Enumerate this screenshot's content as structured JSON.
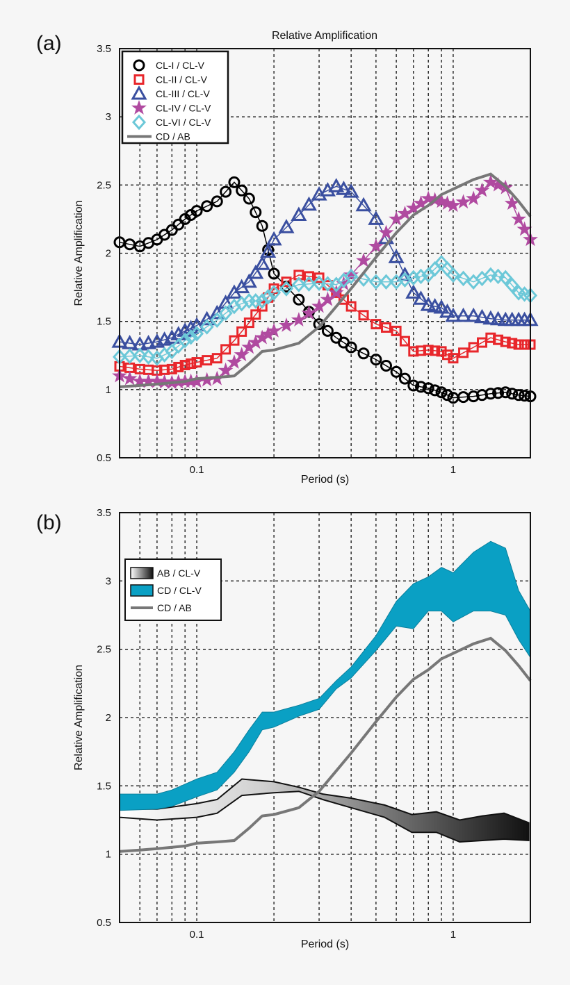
{
  "chart_data": [
    {
      "panel_label": "(a)",
      "type": "line",
      "title": "Relative Amplification",
      "xlabel": "Period (s)",
      "ylabel": "Relative Amplification",
      "xscale": "log",
      "xlim": [
        0.05,
        2.0
      ],
      "ylim": [
        0.5,
        3.5
      ],
      "xticks": [
        {
          "v": 0.1,
          "label": "0.1"
        },
        {
          "v": 1,
          "label": "1"
        }
      ],
      "yticks": [
        {
          "v": 0.5,
          "label": "0.5"
        },
        {
          "v": 1,
          "label": "1"
        },
        {
          "v": 1.5,
          "label": "1.5"
        },
        {
          "v": 2,
          "label": "2"
        },
        {
          "v": 2.5,
          "label": "2.5"
        },
        {
          "v": 3,
          "label": "3"
        },
        {
          "v": 3.5,
          "label": "3.5"
        }
      ],
      "grid": true,
      "legend_position": "top-left",
      "x": [
        0.05,
        0.06,
        0.07,
        0.08,
        0.09,
        0.1,
        0.12,
        0.14,
        0.16,
        0.18,
        0.2,
        0.25,
        0.3,
        0.35,
        0.4,
        0.5,
        0.6,
        0.7,
        0.8,
        0.9,
        1.0,
        1.2,
        1.4,
        1.6,
        1.8,
        2.0
      ],
      "series": [
        {
          "name": "CL-I / CL-V",
          "marker": "circle",
          "color": "#000000",
          "values": [
            2.08,
            2.05,
            2.1,
            2.17,
            2.25,
            2.31,
            2.38,
            2.52,
            2.4,
            2.2,
            1.85,
            1.66,
            1.48,
            1.38,
            1.31,
            1.22,
            1.13,
            1.03,
            1.01,
            0.98,
            0.94,
            0.95,
            0.97,
            0.98,
            0.96,
            0.95
          ]
        },
        {
          "name": "CL-II / CL-V",
          "marker": "square",
          "color": "#e8262b",
          "values": [
            1.17,
            1.15,
            1.14,
            1.15,
            1.18,
            1.2,
            1.23,
            1.36,
            1.49,
            1.61,
            1.74,
            1.84,
            1.82,
            1.71,
            1.61,
            1.48,
            1.43,
            1.28,
            1.29,
            1.28,
            1.23,
            1.31,
            1.38,
            1.35,
            1.33,
            1.33
          ]
        },
        {
          "name": "CL-III / CL-V",
          "marker": "triangle",
          "color": "#3a4fa0",
          "values": [
            1.35,
            1.33,
            1.35,
            1.38,
            1.43,
            1.47,
            1.56,
            1.71,
            1.79,
            1.92,
            2.1,
            2.28,
            2.43,
            2.49,
            2.45,
            2.25,
            1.97,
            1.71,
            1.62,
            1.6,
            1.54,
            1.54,
            1.52,
            1.51,
            1.51,
            1.51
          ]
        },
        {
          "name": "CL-IV / CL-V",
          "marker": "star",
          "color": "#b04aa0",
          "values": [
            1.1,
            1.06,
            1.06,
            1.05,
            1.06,
            1.06,
            1.08,
            1.2,
            1.31,
            1.38,
            1.43,
            1.51,
            1.61,
            1.71,
            1.84,
            2.05,
            2.25,
            2.33,
            2.4,
            2.38,
            2.35,
            2.4,
            2.52,
            2.48,
            2.25,
            2.1
          ]
        },
        {
          "name": "CL-VI / CL-V",
          "marker": "diamond",
          "color": "#6cc8d8",
          "values": [
            1.24,
            1.25,
            1.23,
            1.28,
            1.36,
            1.41,
            1.51,
            1.61,
            1.65,
            1.65,
            1.71,
            1.77,
            1.78,
            1.77,
            1.83,
            1.79,
            1.79,
            1.82,
            1.84,
            1.93,
            1.84,
            1.79,
            1.84,
            1.82,
            1.71,
            1.69
          ]
        },
        {
          "name": "CD / AB",
          "marker": "none",
          "color": "#777777",
          "values": [
            1.02,
            1.03,
            1.04,
            1.05,
            1.06,
            1.08,
            1.09,
            1.1,
            1.19,
            1.28,
            1.29,
            1.34,
            1.46,
            1.61,
            1.74,
            1.97,
            2.15,
            2.28,
            2.35,
            2.43,
            2.47,
            2.54,
            2.58,
            2.49,
            2.38,
            2.27
          ]
        }
      ]
    },
    {
      "panel_label": "(b)",
      "type": "area",
      "xlabel": "Period (s)",
      "ylabel": "Relative Amplification",
      "xscale": "log",
      "xlim": [
        0.05,
        2.0
      ],
      "ylim": [
        0.5,
        3.5
      ],
      "xticks": [
        {
          "v": 0.1,
          "label": "0.1"
        },
        {
          "v": 1,
          "label": "1"
        }
      ],
      "yticks": [
        {
          "v": 0.5,
          "label": "0.5"
        },
        {
          "v": 1,
          "label": "1"
        },
        {
          "v": 1.5,
          "label": "1.5"
        },
        {
          "v": 2,
          "label": "2"
        },
        {
          "v": 2.5,
          "label": "2.5"
        },
        {
          "v": 3,
          "label": "3"
        },
        {
          "v": 3.5,
          "label": "3.5"
        }
      ],
      "grid": true,
      "legend_position": "upper-left",
      "bands": [
        {
          "name": "AB / CL-V",
          "fill": "gradient white-to-black",
          "x": [
            0.05,
            0.07,
            0.1,
            0.12,
            0.15,
            0.2,
            0.25,
            0.31,
            0.4,
            0.54,
            0.69,
            0.86,
            1.06,
            1.3,
            1.58,
            1.97
          ],
          "upper": [
            1.33,
            1.33,
            1.37,
            1.4,
            1.55,
            1.53,
            1.49,
            1.44,
            1.41,
            1.36,
            1.29,
            1.31,
            1.25,
            1.28,
            1.3,
            1.23
          ],
          "lower": [
            1.27,
            1.25,
            1.27,
            1.3,
            1.43,
            1.45,
            1.46,
            1.4,
            1.34,
            1.27,
            1.16,
            1.16,
            1.09,
            1.1,
            1.11,
            1.1
          ]
        },
        {
          "name": "CD / CL-V",
          "fill": "#0aa0c4",
          "x": [
            0.05,
            0.07,
            0.08,
            0.1,
            0.12,
            0.14,
            0.16,
            0.18,
            0.2,
            0.25,
            0.3,
            0.35,
            0.4,
            0.5,
            0.6,
            0.7,
            0.8,
            0.9,
            1.0,
            1.2,
            1.4,
            1.6,
            1.8,
            2.0
          ],
          "upper": [
            1.44,
            1.44,
            1.47,
            1.55,
            1.6,
            1.75,
            1.91,
            2.04,
            2.04,
            2.09,
            2.14,
            2.27,
            2.37,
            2.6,
            2.85,
            2.98,
            3.03,
            3.1,
            3.06,
            3.21,
            3.29,
            3.24,
            2.93,
            2.78
          ],
          "lower": [
            1.32,
            1.33,
            1.35,
            1.42,
            1.47,
            1.6,
            1.75,
            1.91,
            1.93,
            2.01,
            2.06,
            2.21,
            2.29,
            2.49,
            2.67,
            2.65,
            2.78,
            2.78,
            2.7,
            2.78,
            2.78,
            2.75,
            2.57,
            2.44
          ]
        }
      ],
      "series": [
        {
          "name": "CD / AB",
          "color": "#777777",
          "x": [
            0.05,
            0.06,
            0.07,
            0.08,
            0.09,
            0.1,
            0.12,
            0.14,
            0.16,
            0.18,
            0.2,
            0.25,
            0.3,
            0.35,
            0.4,
            0.5,
            0.6,
            0.7,
            0.8,
            0.9,
            1.0,
            1.2,
            1.4,
            1.6,
            1.8,
            2.0
          ],
          "values": [
            1.02,
            1.03,
            1.04,
            1.05,
            1.06,
            1.08,
            1.09,
            1.1,
            1.19,
            1.28,
            1.29,
            1.34,
            1.46,
            1.61,
            1.74,
            1.97,
            2.15,
            2.28,
            2.35,
            2.43,
            2.47,
            2.54,
            2.58,
            2.49,
            2.38,
            2.27
          ]
        }
      ]
    }
  ]
}
